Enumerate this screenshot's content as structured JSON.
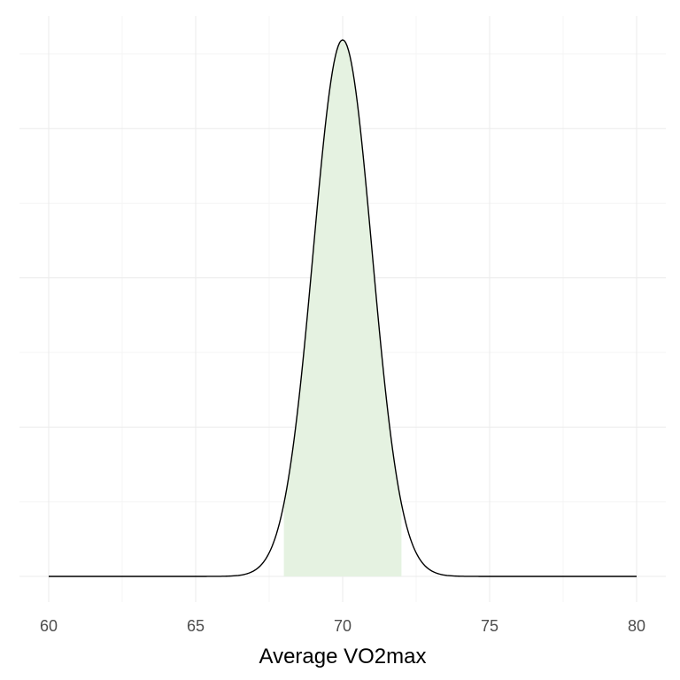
{
  "chart_data": {
    "type": "area",
    "distribution": "normal",
    "mean": 70,
    "sd": 1.0,
    "x_range": [
      60,
      80
    ],
    "shaded_interval": [
      68,
      72
    ],
    "xlabel": "Average VO2max",
    "ylabel": "",
    "title": "",
    "xticks": [
      60,
      65,
      70,
      75,
      80
    ],
    "xtick_labels": [
      "60",
      "65",
      "70",
      "75",
      "80"
    ],
    "grid": true,
    "legend": "none",
    "colors": {
      "fill": "#e5f2e1",
      "line": "#000000",
      "grid_major": "#ebebeb",
      "grid_minor": "#f5f5f5",
      "tick_text": "#4d4d4d"
    }
  }
}
